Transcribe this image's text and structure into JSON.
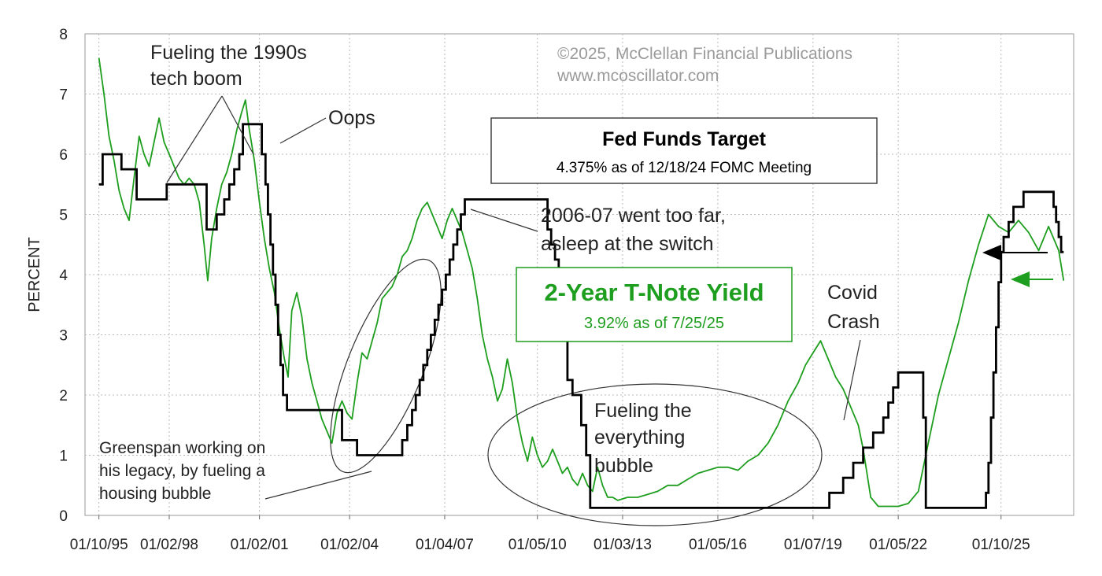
{
  "chart_data": {
    "type": "line",
    "title": "",
    "xlabel": "",
    "ylabel": "PERCENT",
    "ylim": [
      0,
      8
    ],
    "xlim": [
      "1995-04-15",
      "2028-03-01"
    ],
    "grid": true,
    "y_ticks": [
      "0",
      "1",
      "2",
      "3",
      "4",
      "5",
      "6",
      "7",
      "8"
    ],
    "x_ticks": [
      {
        "label": "01/10/95",
        "date": "1995-10-01"
      },
      {
        "label": "01/02/98",
        "date": "1998-02-01"
      },
      {
        "label": "01/02/01",
        "date": "2001-02-01"
      },
      {
        "label": "01/02/04",
        "date": "2004-02-01"
      },
      {
        "label": "01/04/07",
        "date": "2007-04-01"
      },
      {
        "label": "01/05/10",
        "date": "2010-05-01"
      },
      {
        "label": "01/03/13",
        "date": "2013-03-01"
      },
      {
        "label": "01/05/16",
        "date": "2016-05-01"
      },
      {
        "label": "01/07/19",
        "date": "2019-07-01"
      },
      {
        "label": "01/05/22",
        "date": "2022-05-01"
      },
      {
        "label": "01/10/25",
        "date": "2025-10-01"
      }
    ],
    "series": [
      {
        "name": "Fed Funds Target",
        "color": "#000000",
        "style": "step",
        "points": [
          [
            "1995-10-01",
            5.5
          ],
          [
            "1995-11-15",
            6.0
          ],
          [
            "1996-07-01",
            5.75
          ],
          [
            "1997-01-01",
            5.25
          ],
          [
            "1998-01-01",
            5.5
          ],
          [
            "1999-02-15",
            5.5
          ],
          [
            "1999-05-01",
            4.75
          ],
          [
            "1999-09-01",
            5.0
          ],
          [
            "1999-12-01",
            5.25
          ],
          [
            "2000-02-01",
            5.5
          ],
          [
            "2000-04-01",
            5.75
          ],
          [
            "2000-06-01",
            6.0
          ],
          [
            "2000-07-15",
            6.5
          ],
          [
            "2001-03-01",
            6.0
          ],
          [
            "2001-04-15",
            5.5
          ],
          [
            "2001-05-15",
            5.0
          ],
          [
            "2001-06-15",
            4.5
          ],
          [
            "2001-07-15",
            4.0
          ],
          [
            "2001-08-15",
            3.5
          ],
          [
            "2001-09-15",
            3.0
          ],
          [
            "2001-10-15",
            2.5
          ],
          [
            "2001-11-15",
            2.0
          ],
          [
            "2002-01-01",
            1.75
          ],
          [
            "2003-11-01",
            1.25
          ],
          [
            "2004-05-01",
            1.0
          ],
          [
            "2005-11-01",
            1.25
          ],
          [
            "2006-01-01",
            1.5
          ],
          [
            "2006-03-01",
            1.75
          ],
          [
            "2006-04-15",
            2.0
          ],
          [
            "2006-06-01",
            2.25
          ],
          [
            "2006-07-15",
            2.5
          ],
          [
            "2006-09-01",
            2.75
          ],
          [
            "2006-10-15",
            3.0
          ],
          [
            "2006-12-01",
            3.25
          ],
          [
            "2007-01-15",
            3.5
          ],
          [
            "2007-03-01",
            3.75
          ],
          [
            "2007-04-15",
            4.0
          ],
          [
            "2007-06-01",
            4.25
          ],
          [
            "2007-07-15",
            4.5
          ],
          [
            "2007-09-01",
            4.75
          ],
          [
            "2007-10-15",
            5.0
          ],
          [
            "2007-12-01",
            5.25
          ],
          [
            "2010-09-01",
            4.75
          ],
          [
            "2010-10-15",
            4.5
          ],
          [
            "2010-12-01",
            4.25
          ],
          [
            "2011-01-15",
            3.5
          ],
          [
            "2011-03-01",
            3.0
          ],
          [
            "2011-05-01",
            2.25
          ],
          [
            "2011-07-01",
            2.0
          ],
          [
            "2011-10-15",
            1.5
          ],
          [
            "2011-12-15",
            1.0
          ],
          [
            "2012-02-01",
            0.125
          ],
          [
            "2020-01-15",
            0.375
          ],
          [
            "2020-07-01",
            0.625
          ],
          [
            "2020-11-01",
            0.875
          ],
          [
            "2021-03-01",
            1.125
          ],
          [
            "2021-07-01",
            1.375
          ],
          [
            "2021-11-01",
            1.625
          ],
          [
            "2022-01-01",
            1.875
          ],
          [
            "2022-03-01",
            2.125
          ],
          [
            "2022-05-01",
            2.375
          ],
          [
            "2023-03-01",
            1.625
          ],
          [
            "2023-04-01",
            0.125
          ],
          [
            "2025-04-01",
            0.375
          ],
          [
            "2025-05-01",
            0.875
          ],
          [
            "2025-06-01",
            1.625
          ],
          [
            "2025-07-01",
            2.375
          ],
          [
            "2025-08-01",
            3.125
          ],
          [
            "2025-09-01",
            3.875
          ],
          [
            "2025-10-01",
            4.375
          ],
          [
            "2025-11-01",
            4.625
          ],
          [
            "2026-01-01",
            4.875
          ],
          [
            "2026-03-01",
            5.125
          ],
          [
            "2026-07-01",
            5.375
          ],
          [
            "2027-07-01",
            5.125
          ],
          [
            "2027-08-01",
            4.875
          ],
          [
            "2027-09-01",
            4.625
          ],
          [
            "2027-10-01",
            4.375
          ],
          [
            "2027-11-01",
            4.375
          ]
        ]
      },
      {
        "name": "2-Year T-Note Yield",
        "color": "#1e9e1e",
        "style": "line",
        "points": [
          [
            "1995-10-01",
            7.6
          ],
          [
            "1995-12-01",
            7.0
          ],
          [
            "1996-02-01",
            6.3
          ],
          [
            "1996-04-01",
            5.9
          ],
          [
            "1996-06-01",
            5.4
          ],
          [
            "1996-08-01",
            5.1
          ],
          [
            "1996-10-01",
            4.9
          ],
          [
            "1996-12-01",
            5.6
          ],
          [
            "1997-02-01",
            6.3
          ],
          [
            "1997-04-01",
            6.0
          ],
          [
            "1997-06-01",
            5.8
          ],
          [
            "1997-08-01",
            6.2
          ],
          [
            "1997-10-01",
            6.6
          ],
          [
            "1997-12-01",
            6.2
          ],
          [
            "1998-02-01",
            6.0
          ],
          [
            "1998-04-01",
            5.8
          ],
          [
            "1998-06-01",
            5.6
          ],
          [
            "1998-08-01",
            5.5
          ],
          [
            "1998-10-01",
            5.6
          ],
          [
            "1998-12-01",
            5.5
          ],
          [
            "1999-02-01",
            5.2
          ],
          [
            "1999-04-01",
            4.5
          ],
          [
            "1999-05-15",
            3.9
          ],
          [
            "1999-07-01",
            4.6
          ],
          [
            "1999-09-01",
            5.1
          ],
          [
            "1999-11-01",
            5.5
          ],
          [
            "2000-01-01",
            5.7
          ],
          [
            "2000-03-01",
            6.0
          ],
          [
            "2000-05-01",
            6.4
          ],
          [
            "2000-07-01",
            6.7
          ],
          [
            "2000-08-15",
            6.9
          ],
          [
            "2000-10-01",
            6.4
          ],
          [
            "2000-12-01",
            5.9
          ],
          [
            "2001-02-01",
            5.2
          ],
          [
            "2001-04-01",
            4.6
          ],
          [
            "2001-06-01",
            4.1
          ],
          [
            "2001-08-01",
            3.7
          ],
          [
            "2001-10-01",
            3.1
          ],
          [
            "2001-12-01",
            2.6
          ],
          [
            "2002-01-15",
            2.3
          ],
          [
            "2002-03-01",
            3.4
          ],
          [
            "2002-05-01",
            3.7
          ],
          [
            "2002-07-01",
            3.3
          ],
          [
            "2002-09-01",
            2.6
          ],
          [
            "2002-11-01",
            2.2
          ],
          [
            "2003-01-01",
            1.9
          ],
          [
            "2003-03-01",
            1.6
          ],
          [
            "2003-05-01",
            1.4
          ],
          [
            "2003-07-01",
            1.2
          ],
          [
            "2003-09-01",
            1.7
          ],
          [
            "2003-11-01",
            1.9
          ],
          [
            "2004-01-01",
            1.7
          ],
          [
            "2004-03-01",
            1.6
          ],
          [
            "2004-05-01",
            2.2
          ],
          [
            "2004-07-01",
            2.7
          ],
          [
            "2004-09-01",
            2.6
          ],
          [
            "2004-11-01",
            2.9
          ],
          [
            "2005-01-01",
            3.2
          ],
          [
            "2005-03-01",
            3.6
          ],
          [
            "2005-05-01",
            3.7
          ],
          [
            "2005-07-01",
            3.8
          ],
          [
            "2005-09-01",
            4.0
          ],
          [
            "2005-11-01",
            4.3
          ],
          [
            "2006-01-01",
            4.4
          ],
          [
            "2006-03-01",
            4.6
          ],
          [
            "2006-05-01",
            4.9
          ],
          [
            "2006-07-01",
            5.1
          ],
          [
            "2006-09-01",
            5.2
          ],
          [
            "2006-11-01",
            5.0
          ],
          [
            "2007-01-01",
            4.8
          ],
          [
            "2007-03-01",
            4.6
          ],
          [
            "2007-05-01",
            4.9
          ],
          [
            "2007-07-01",
            5.1
          ],
          [
            "2007-09-01",
            4.9
          ],
          [
            "2007-11-01",
            4.7
          ],
          [
            "2008-01-01",
            4.4
          ],
          [
            "2008-03-01",
            4.1
          ],
          [
            "2008-05-01",
            3.6
          ],
          [
            "2008-07-01",
            3.0
          ],
          [
            "2008-09-01",
            2.6
          ],
          [
            "2008-11-01",
            2.3
          ],
          [
            "2009-01-01",
            1.9
          ],
          [
            "2009-03-01",
            2.1
          ],
          [
            "2009-05-01",
            2.6
          ],
          [
            "2009-07-01",
            2.2
          ],
          [
            "2009-09-01",
            1.6
          ],
          [
            "2009-11-01",
            1.2
          ],
          [
            "2010-01-01",
            0.9
          ],
          [
            "2010-03-01",
            1.3
          ],
          [
            "2010-05-01",
            1.0
          ],
          [
            "2010-07-01",
            0.8
          ],
          [
            "2010-09-01",
            0.9
          ],
          [
            "2010-11-01",
            1.1
          ],
          [
            "2011-01-01",
            0.9
          ],
          [
            "2011-03-01",
            0.7
          ],
          [
            "2011-05-01",
            0.8
          ],
          [
            "2011-07-01",
            0.6
          ],
          [
            "2011-09-01",
            0.5
          ],
          [
            "2011-11-01",
            0.7
          ],
          [
            "2012-01-01",
            0.5
          ],
          [
            "2012-03-01",
            0.4
          ],
          [
            "2012-05-01",
            0.8
          ],
          [
            "2012-07-01",
            0.5
          ],
          [
            "2012-09-01",
            0.3
          ],
          [
            "2012-11-01",
            0.3
          ],
          [
            "2013-01-01",
            0.25
          ],
          [
            "2013-05-01",
            0.3
          ],
          [
            "2013-09-01",
            0.3
          ],
          [
            "2014-01-01",
            0.35
          ],
          [
            "2014-05-01",
            0.4
          ],
          [
            "2014-09-01",
            0.5
          ],
          [
            "2015-01-01",
            0.5
          ],
          [
            "2015-05-01",
            0.6
          ],
          [
            "2015-09-01",
            0.7
          ],
          [
            "2016-01-01",
            0.75
          ],
          [
            "2016-05-01",
            0.8
          ],
          [
            "2016-09-01",
            0.8
          ],
          [
            "2017-01-01",
            0.75
          ],
          [
            "2017-05-01",
            0.9
          ],
          [
            "2017-09-01",
            1.0
          ],
          [
            "2018-01-01",
            1.2
          ],
          [
            "2018-05-01",
            1.5
          ],
          [
            "2018-09-01",
            1.9
          ],
          [
            "2019-01-01",
            2.2
          ],
          [
            "2019-04-01",
            2.5
          ],
          [
            "2019-07-01",
            2.7
          ],
          [
            "2019-10-01",
            2.9
          ],
          [
            "2020-01-01",
            2.6
          ],
          [
            "2020-04-01",
            2.3
          ],
          [
            "2020-07-01",
            2.1
          ],
          [
            "2020-10-01",
            1.8
          ],
          [
            "2021-01-01",
            1.5
          ],
          [
            "2021-03-01",
            1.1
          ],
          [
            "2021-06-01",
            0.3
          ],
          [
            "2021-09-01",
            0.15
          ],
          [
            "2022-01-01",
            0.15
          ],
          [
            "2022-05-01",
            0.15
          ],
          [
            "2022-09-01",
            0.2
          ],
          [
            "2023-01-01",
            0.4
          ],
          [
            "2023-05-01",
            1.2
          ],
          [
            "2023-09-01",
            2.0
          ],
          [
            "2024-01-01",
            2.6
          ],
          [
            "2024-05-01",
            3.2
          ],
          [
            "2024-09-01",
            3.9
          ],
          [
            "2025-01-01",
            4.5
          ],
          [
            "2025-05-01",
            5.0
          ],
          [
            "2025-09-01",
            4.8
          ],
          [
            "2026-01-01",
            4.7
          ],
          [
            "2026-05-01",
            4.9
          ],
          [
            "2026-09-01",
            4.7
          ],
          [
            "2027-01-01",
            4.4
          ],
          [
            "2027-05-01",
            4.8
          ],
          [
            "2027-09-01",
            4.4
          ],
          [
            "2027-11-01",
            3.9
          ]
        ]
      }
    ],
    "annotations": {
      "copyright": "©2025, McClellan Financial Publications",
      "website": "www.mcoscillator.com",
      "fed_box_title": "Fed Funds Target",
      "fed_box_subtitle": "4.375% as of 12/18/24 FOMC Meeting",
      "tnote_box_title": "2-Year T-Note Yield",
      "tnote_box_subtitle": "3.92% as of 7/25/25",
      "tech_boom": [
        "Fueling the 1990s",
        "tech boom"
      ],
      "oops": "Oops",
      "too_far": [
        "2006-07 went too far,",
        "asleep at the switch"
      ],
      "covid": [
        "Covid",
        "Crash"
      ],
      "everything_bubble": [
        "Fueling the",
        "everything",
        "bubble"
      ],
      "greenspan": [
        "Greenspan working on",
        "his legacy, by fueling a",
        "housing bubble"
      ]
    }
  }
}
